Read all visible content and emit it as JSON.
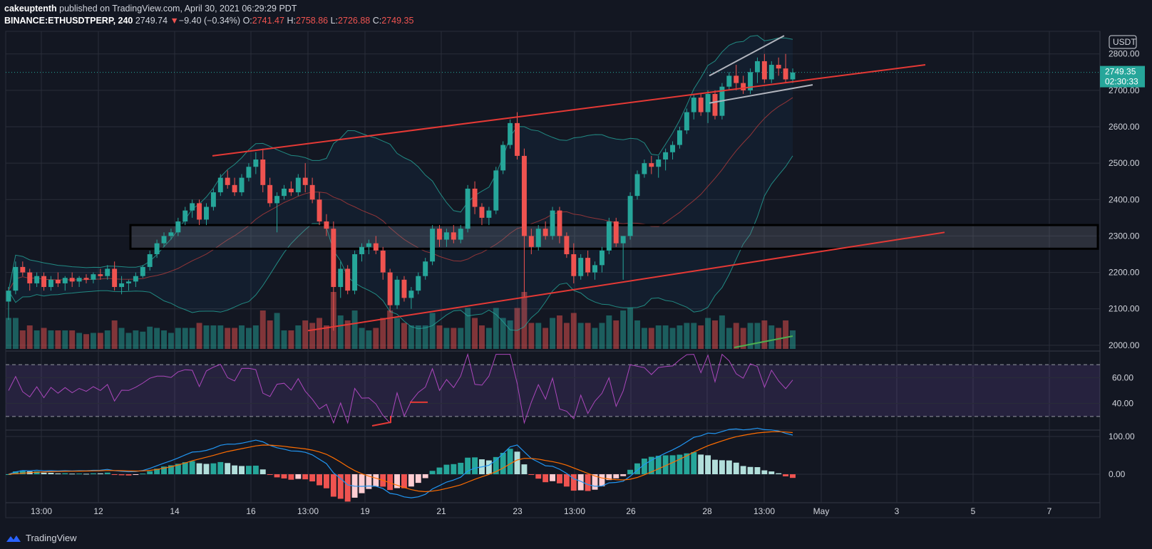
{
  "header": {
    "author": "cakeuptenth",
    "published": "published on TradingView.com, April 30, 2021 06:29:29 PDT",
    "symbol": "BINANCE:ETHUSDTPERP, 240",
    "last": "2749.74",
    "change_arrow": "▼",
    "change": "−9.40 (−0.34%)",
    "o_label": "O:",
    "o": "2741.47",
    "h_label": "H:",
    "h": "2758.86",
    "l_label": "L:",
    "l": "2726.88",
    "c_label": "C:",
    "c": "2749.35"
  },
  "price_axis": {
    "currency": "USDT",
    "ticks": [
      "2800.00",
      "2700.00",
      "2600.00",
      "2500.00",
      "2400.00",
      "2300.00",
      "2200.00",
      "2100.00",
      "2000.00"
    ],
    "last_price": "2749.35",
    "countdown": "02:30:33"
  },
  "rsi_axis": {
    "ticks": [
      "60.00",
      "40.00"
    ]
  },
  "macd_axis": {
    "ticks": [
      "100.00",
      "0.00"
    ]
  },
  "time_axis": {
    "ticks": [
      "13:00",
      "12",
      "14",
      "16",
      "13:00",
      "19",
      "21",
      "23",
      "13:00",
      "26",
      "28",
      "13:00",
      "May",
      "3",
      "5",
      "7"
    ]
  },
  "footer": {
    "brand": "TradingView"
  },
  "colors": {
    "up": "#26a69a",
    "down": "#ef5350",
    "bg": "#131722",
    "trend": "#e53935",
    "rsi": "#9c27b0"
  },
  "chart_data": {
    "type": "candlestick",
    "series_encoding": [
      "open",
      "high",
      "low",
      "close"
    ],
    "ylim": [
      1990,
      2860
    ],
    "candles": [
      [
        2120,
        2160,
        2070,
        2150
      ],
      [
        2150,
        2230,
        2140,
        2215
      ],
      [
        2215,
        2230,
        2190,
        2200
      ],
      [
        2200,
        2210,
        2150,
        2170
      ],
      [
        2170,
        2200,
        2160,
        2190
      ],
      [
        2190,
        2200,
        2150,
        2160
      ],
      [
        2160,
        2190,
        2150,
        2180
      ],
      [
        2180,
        2200,
        2160,
        2170
      ],
      [
        2170,
        2190,
        2150,
        2185
      ],
      [
        2185,
        2200,
        2160,
        2175
      ],
      [
        2175,
        2190,
        2160,
        2185
      ],
      [
        2185,
        2195,
        2170,
        2180
      ],
      [
        2180,
        2200,
        2170,
        2195
      ],
      [
        2195,
        2210,
        2180,
        2190
      ],
      [
        2190,
        2220,
        2180,
        2210
      ],
      [
        2210,
        2230,
        2150,
        2160
      ],
      [
        2160,
        2190,
        2140,
        2170
      ],
      [
        2170,
        2180,
        2150,
        2175
      ],
      [
        2175,
        2200,
        2160,
        2190
      ],
      [
        2190,
        2220,
        2185,
        2215
      ],
      [
        2215,
        2260,
        2205,
        2250
      ],
      [
        2250,
        2290,
        2240,
        2280
      ],
      [
        2280,
        2310,
        2270,
        2300
      ],
      [
        2300,
        2320,
        2290,
        2310
      ],
      [
        2310,
        2350,
        2300,
        2340
      ],
      [
        2340,
        2380,
        2330,
        2370
      ],
      [
        2370,
        2400,
        2350,
        2390
      ],
      [
        2390,
        2400,
        2330,
        2345
      ],
      [
        2345,
        2390,
        2330,
        2380
      ],
      [
        2380,
        2430,
        2370,
        2420
      ],
      [
        2420,
        2470,
        2410,
        2460
      ],
      [
        2460,
        2480,
        2430,
        2440
      ],
      [
        2440,
        2460,
        2410,
        2420
      ],
      [
        2420,
        2470,
        2410,
        2460
      ],
      [
        2460,
        2500,
        2450,
        2490
      ],
      [
        2490,
        2530,
        2470,
        2510
      ],
      [
        2510,
        2540,
        2420,
        2440
      ],
      [
        2440,
        2460,
        2380,
        2390
      ],
      [
        2390,
        2420,
        2310,
        2410
      ],
      [
        2410,
        2440,
        2400,
        2430
      ],
      [
        2430,
        2450,
        2410,
        2420
      ],
      [
        2420,
        2470,
        2410,
        2460
      ],
      [
        2460,
        2500,
        2420,
        2440
      ],
      [
        2440,
        2460,
        2390,
        2400
      ],
      [
        2400,
        2420,
        2330,
        2340
      ],
      [
        2340,
        2360,
        2300,
        2320
      ],
      [
        2320,
        2340,
        2040,
        2160
      ],
      [
        2160,
        2230,
        2130,
        2210
      ],
      [
        2210,
        2220,
        2140,
        2150
      ],
      [
        2150,
        2260,
        2140,
        2250
      ],
      [
        2250,
        2280,
        2230,
        2270
      ],
      [
        2270,
        2290,
        2250,
        2280
      ],
      [
        2280,
        2300,
        2250,
        2260
      ],
      [
        2260,
        2270,
        2180,
        2200
      ],
      [
        2200,
        2210,
        2090,
        2110
      ],
      [
        2110,
        2190,
        2100,
        2180
      ],
      [
        2180,
        2190,
        2120,
        2130
      ],
      [
        2130,
        2160,
        2100,
        2150
      ],
      [
        2150,
        2200,
        2140,
        2190
      ],
      [
        2190,
        2240,
        2180,
        2230
      ],
      [
        2230,
        2330,
        2220,
        2320
      ],
      [
        2320,
        2330,
        2270,
        2290
      ],
      [
        2290,
        2320,
        2270,
        2310
      ],
      [
        2310,
        2330,
        2280,
        2290
      ],
      [
        2290,
        2330,
        2280,
        2320
      ],
      [
        2320,
        2440,
        2310,
        2430
      ],
      [
        2430,
        2450,
        2360,
        2380
      ],
      [
        2380,
        2390,
        2330,
        2350
      ],
      [
        2350,
        2380,
        2330,
        2370
      ],
      [
        2370,
        2490,
        2360,
        2480
      ],
      [
        2480,
        2560,
        2470,
        2550
      ],
      [
        2550,
        2620,
        2540,
        2610
      ],
      [
        2610,
        2640,
        2510,
        2520
      ],
      [
        2520,
        2540,
        2130,
        2300
      ],
      [
        2300,
        2320,
        2250,
        2270
      ],
      [
        2270,
        2330,
        2260,
        2320
      ],
      [
        2320,
        2340,
        2290,
        2300
      ],
      [
        2300,
        2380,
        2290,
        2370
      ],
      [
        2370,
        2380,
        2280,
        2300
      ],
      [
        2300,
        2310,
        2240,
        2250
      ],
      [
        2250,
        2280,
        2170,
        2190
      ],
      [
        2190,
        2250,
        2180,
        2240
      ],
      [
        2240,
        2260,
        2190,
        2200
      ],
      [
        2200,
        2230,
        2180,
        2220
      ],
      [
        2220,
        2270,
        2200,
        2260
      ],
      [
        2260,
        2350,
        2250,
        2340
      ],
      [
        2340,
        2350,
        2270,
        2280
      ],
      [
        2280,
        2300,
        2180,
        2300
      ],
      [
        2300,
        2420,
        2290,
        2410
      ],
      [
        2410,
        2480,
        2400,
        2470
      ],
      [
        2470,
        2510,
        2460,
        2500
      ],
      [
        2500,
        2520,
        2470,
        2490
      ],
      [
        2490,
        2520,
        2460,
        2510
      ],
      [
        2510,
        2540,
        2480,
        2530
      ],
      [
        2530,
        2560,
        2510,
        2550
      ],
      [
        2550,
        2600,
        2540,
        2590
      ],
      [
        2590,
        2650,
        2580,
        2640
      ],
      [
        2640,
        2690,
        2620,
        2680
      ],
      [
        2680,
        2690,
        2630,
        2640
      ],
      [
        2640,
        2700,
        2610,
        2690
      ],
      [
        2690,
        2700,
        2620,
        2630
      ],
      [
        2630,
        2720,
        2620,
        2710
      ],
      [
        2710,
        2750,
        2700,
        2740
      ],
      [
        2740,
        2770,
        2700,
        2720
      ],
      [
        2720,
        2740,
        2690,
        2700
      ],
      [
        2700,
        2760,
        2690,
        2750
      ],
      [
        2750,
        2790,
        2720,
        2780
      ],
      [
        2780,
        2800,
        2720,
        2730
      ],
      [
        2730,
        2780,
        2720,
        2770
      ],
      [
        2770,
        2790,
        2740,
        2760
      ],
      [
        2760,
        2800,
        2720,
        2730
      ],
      [
        2730,
        2760,
        2720,
        2749
      ]
    ],
    "rsi_levels": [
      30,
      40,
      60,
      70
    ],
    "macd_levels": [
      0,
      100
    ]
  }
}
